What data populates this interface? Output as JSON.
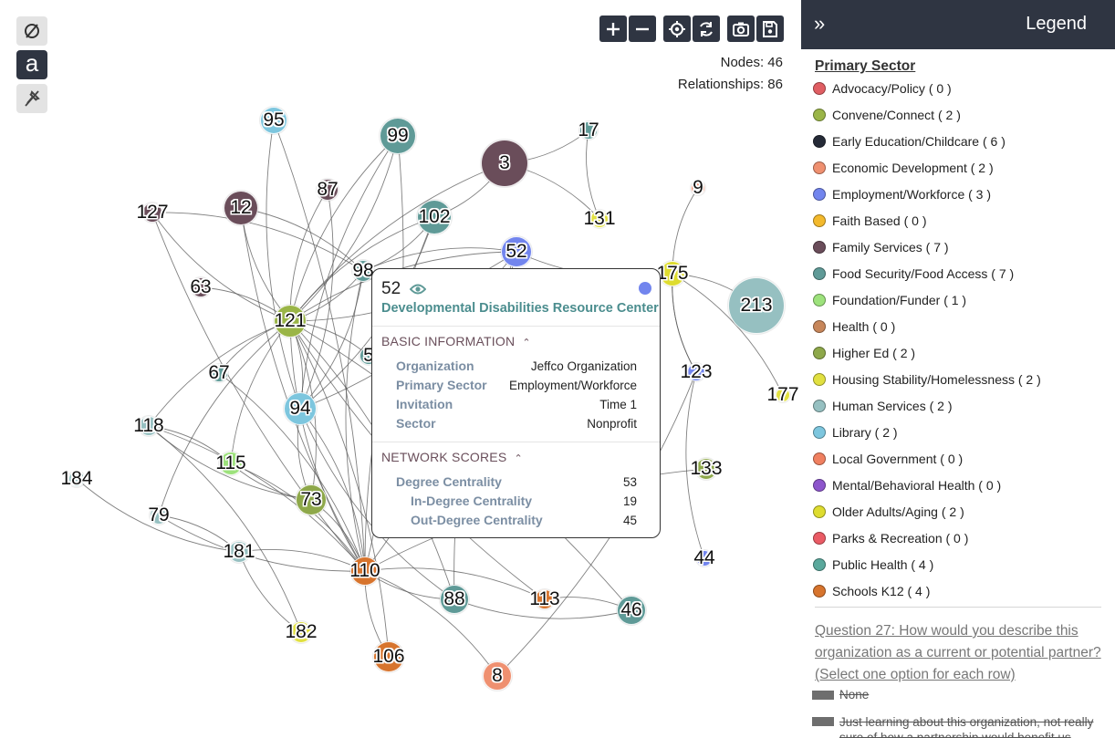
{
  "toolbar": {
    "left_buttons": [
      {
        "icon": "empty-set-icon"
      },
      {
        "icon": "label-a-icon",
        "glyph": "a"
      },
      {
        "icon": "pin-off-icon"
      }
    ],
    "top_buttons": [
      "zoom-in-icon",
      "zoom-out-icon",
      "center-icon",
      "refresh-icon",
      "camera-icon",
      "save-icon"
    ]
  },
  "stats": {
    "nodes": "Nodes: 46",
    "relationships": "Relationships: 86"
  },
  "sector_colors": {
    "Advocacy/Policy": "#e05e63",
    "Convene/Connect": "#9ab547",
    "Early Education/Childcare": "#252a37",
    "Economic Development": "#ef9070",
    "Employment/Workforce": "#7285ee",
    "Faith Based": "#f3b92c",
    "Family Services": "#6a4d5a",
    "Food Security/Food Access": "#5f9a97",
    "Foundation/Funder": "#9de27c",
    "Health": "#c7865a",
    "Higher Ed": "#8ea84a",
    "Housing Stability/Homelessness": "#e1e040",
    "Human Services": "#96c0c1",
    "Library": "#7dc6de",
    "Local Government": "#f08060",
    "Mental/Behavioral Health": "#8d55cc",
    "Older Adults/Aging": "#dedc2f",
    "Parks & Recreation": "#ea5b65",
    "Public Health": "#5aa89c",
    "Schools K12": "#d7742d"
  },
  "graph": {
    "nodes": [
      {
        "id": "95",
        "sector": "Library",
        "size": 28
      },
      {
        "id": "99",
        "sector": "Food Security/Food Access",
        "size": 38
      },
      {
        "id": "17",
        "sector": "Food Security/Food Access",
        "size": 18
      },
      {
        "id": "3",
        "sector": "Family Services",
        "size": 50
      },
      {
        "id": "87",
        "sector": "Family Services",
        "size": 22
      },
      {
        "id": "12",
        "sector": "Family Services",
        "size": 36
      },
      {
        "id": "127",
        "sector": "Family Services",
        "size": 20
      },
      {
        "id": "102",
        "sector": "Food Security/Food Access",
        "size": 36
      },
      {
        "id": "131",
        "sector": "Housing Stability/Homelessness",
        "size": 18
      },
      {
        "id": "9",
        "sector": "Economic Development",
        "size": 14
      },
      {
        "id": "52",
        "sector": "Employment/Workforce",
        "size": 32
      },
      {
        "id": "98",
        "sector": "Food Security/Food Access",
        "size": 22
      },
      {
        "id": "175",
        "sector": "Older Adults/Aging",
        "size": 26
      },
      {
        "id": "213",
        "sector": "Human Services",
        "size": 60
      },
      {
        "id": "63",
        "sector": "Family Services",
        "size": 20
      },
      {
        "id": "121",
        "sector": "Convene/Connect",
        "size": 34
      },
      {
        "id": "5",
        "sector": "Food Security/Food Access",
        "size": 18
      },
      {
        "id": "67",
        "sector": "Food Security/Food Access",
        "size": 18
      },
      {
        "id": "94",
        "sector": "Library",
        "size": 34
      },
      {
        "id": "123",
        "sector": "Employment/Workforce",
        "size": 18
      },
      {
        "id": "177",
        "sector": "Housing Stability/Homelessness",
        "size": 14
      },
      {
        "id": "118",
        "sector": "Human Services",
        "size": 20
      },
      {
        "id": "115",
        "sector": "Foundation/Funder",
        "size": 24
      },
      {
        "id": "133",
        "sector": "Higher Ed",
        "size": 22
      },
      {
        "id": "184",
        "sector": "Human Services",
        "size": 16
      },
      {
        "id": "73",
        "sector": "Higher Ed",
        "size": 32
      },
      {
        "id": "79",
        "sector": "Human Services",
        "size": 18
      },
      {
        "id": "181",
        "sector": "Human Services",
        "size": 22
      },
      {
        "id": "44",
        "sector": "Employment/Workforce",
        "size": 16
      },
      {
        "id": "110",
        "sector": "Schools K12",
        "size": 30
      },
      {
        "id": "88",
        "sector": "Food Security/Food Access",
        "size": 30
      },
      {
        "id": "113",
        "sector": "Schools K12",
        "size": 20
      },
      {
        "id": "46",
        "sector": "Food Security/Food Access",
        "size": 30
      },
      {
        "id": "182",
        "sector": "Housing Stability/Homelessness",
        "size": 22
      },
      {
        "id": "106",
        "sector": "Schools K12",
        "size": 32
      },
      {
        "id": "8",
        "sector": "Economic Development",
        "size": 30
      }
    ],
    "edges": [
      [
        "95",
        "94"
      ],
      [
        "95",
        "110"
      ],
      [
        "99",
        "121"
      ],
      [
        "99",
        "121"
      ],
      [
        "99",
        "94"
      ],
      [
        "99",
        "110"
      ],
      [
        "87",
        "121"
      ],
      [
        "87",
        "94"
      ],
      [
        "12",
        "121"
      ],
      [
        "12",
        "98"
      ],
      [
        "127",
        "121"
      ],
      [
        "127",
        "98"
      ],
      [
        "102",
        "121"
      ],
      [
        "102",
        "94"
      ],
      [
        "102",
        "110"
      ],
      [
        "102",
        "98"
      ],
      [
        "3",
        "17"
      ],
      [
        "3",
        "131"
      ],
      [
        "17",
        "131"
      ],
      [
        "3",
        "102"
      ],
      [
        "3",
        "121"
      ],
      [
        "52",
        "121"
      ],
      [
        "52",
        "98"
      ],
      [
        "52",
        "110"
      ],
      [
        "52",
        "88"
      ],
      [
        "52",
        "94"
      ],
      [
        "52",
        "175"
      ],
      [
        "98",
        "121"
      ],
      [
        "98",
        "110"
      ],
      [
        "98",
        "94"
      ],
      [
        "9",
        "175"
      ],
      [
        "175",
        "213"
      ],
      [
        "175",
        "123"
      ],
      [
        "175",
        "177"
      ],
      [
        "175",
        "123"
      ],
      [
        "63",
        "121"
      ],
      [
        "121",
        "67"
      ],
      [
        "121",
        "94"
      ],
      [
        "121",
        "115"
      ],
      [
        "121",
        "73"
      ],
      [
        "121",
        "110"
      ],
      [
        "121",
        "5"
      ],
      [
        "121",
        "118"
      ],
      [
        "121",
        "88"
      ],
      [
        "121",
        "113"
      ],
      [
        "121",
        "106"
      ],
      [
        "121",
        "79"
      ],
      [
        "121",
        "46"
      ],
      [
        "94",
        "73"
      ],
      [
        "94",
        "110"
      ],
      [
        "94",
        "88"
      ],
      [
        "118",
        "115"
      ],
      [
        "118",
        "73"
      ],
      [
        "118",
        "110"
      ],
      [
        "115",
        "73"
      ],
      [
        "115",
        "110"
      ],
      [
        "184",
        "181"
      ],
      [
        "79",
        "181"
      ],
      [
        "79",
        "110"
      ],
      [
        "181",
        "110"
      ],
      [
        "181",
        "182"
      ],
      [
        "73",
        "110"
      ],
      [
        "110",
        "106"
      ],
      [
        "110",
        "8"
      ],
      [
        "110",
        "88"
      ],
      [
        "110",
        "113"
      ],
      [
        "133",
        "110"
      ],
      [
        "44",
        "123"
      ],
      [
        "88",
        "46"
      ],
      [
        "113",
        "46"
      ],
      [
        "8",
        "123"
      ],
      [
        "121",
        "52"
      ],
      [
        "12",
        "110"
      ],
      [
        "67",
        "110"
      ],
      [
        "127",
        "110"
      ],
      [
        "118",
        "182"
      ]
    ]
  },
  "tooltip": {
    "id": "52",
    "name": "Developmental Disabilities Resource Center",
    "dot_color": "#7285ee",
    "sections": {
      "basic_title": "BASIC INFORMATION",
      "network_title": "NETWORK SCORES"
    },
    "basic": [
      {
        "key": "Organization",
        "value": "Jeffco Organization"
      },
      {
        "key": "Primary Sector",
        "value": "Employment/Workforce"
      },
      {
        "key": "Invitation",
        "value": "Time 1"
      },
      {
        "key": "Sector",
        "value": "Nonprofit"
      }
    ],
    "scores": [
      {
        "key": "Degree Centrality",
        "value": "53"
      },
      {
        "key": "In-Degree Centrality",
        "value": "19"
      },
      {
        "key": "Out-Degree Centrality",
        "value": "45"
      }
    ]
  },
  "legend": {
    "title": "Legend",
    "section_title": "Primary Sector",
    "items": [
      {
        "label": "Advocacy/Policy ( 0 )",
        "color": "#e05e63"
      },
      {
        "label": "Convene/Connect ( 2 )",
        "color": "#9ab547"
      },
      {
        "label": "Early Education/Childcare ( 6 )",
        "color": "#252a37"
      },
      {
        "label": "Economic Development ( 2 )",
        "color": "#ef9070"
      },
      {
        "label": "Employment/Workforce ( 3 )",
        "color": "#7285ee"
      },
      {
        "label": "Faith Based ( 0 )",
        "color": "#f3b92c"
      },
      {
        "label": "Family Services ( 7 )",
        "color": "#6a4d5a"
      },
      {
        "label": "Food Security/Food Access ( 7 )",
        "color": "#5f9a97"
      },
      {
        "label": "Foundation/Funder ( 1 )",
        "color": "#9de27c"
      },
      {
        "label": "Health ( 0 )",
        "color": "#c7865a"
      },
      {
        "label": "Higher Ed ( 2 )",
        "color": "#8ea84a"
      },
      {
        "label": "Housing Stability/Homelessness ( 2 )",
        "color": "#e1e040"
      },
      {
        "label": "Human Services ( 2 )",
        "color": "#96c0c1"
      },
      {
        "label": "Library ( 2 )",
        "color": "#7dc6de"
      },
      {
        "label": "Local Government ( 0 )",
        "color": "#f08060"
      },
      {
        "label": "Mental/Behavioral Health ( 0 )",
        "color": "#8d55cc"
      },
      {
        "label": "Older Adults/Aging ( 2 )",
        "color": "#dedc2f"
      },
      {
        "label": "Parks & Recreation ( 0 )",
        "color": "#ea5b65"
      },
      {
        "label": "Public Health ( 4 )",
        "color": "#5aa89c"
      },
      {
        "label": "Schools K12 ( 4 )",
        "color": "#d7742d"
      }
    ],
    "question": "Question 27: How would you describe this organization as a current or potential partner? (Select one option for each row)",
    "options": [
      {
        "label": "None"
      },
      {
        "label": "Just learning about this organization, not really sure of how a partnership would benefit us"
      }
    ]
  }
}
